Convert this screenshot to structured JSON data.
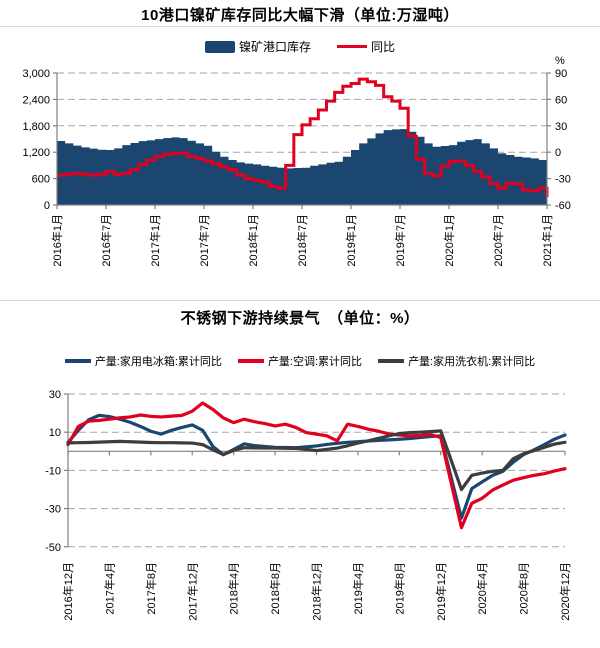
{
  "page_background": "#ffffff",
  "chart_data": [
    {
      "type": "area",
      "title": "10港口镍矿库存同比大幅下滑（单位:万湿吨）",
      "legend_position": "top",
      "grid": true,
      "x_frequency": "monthly",
      "x_range": "2016年1月 — 2021年1月",
      "x_tick_labels": [
        "2016年1月",
        "2016年7月",
        "2017年1月",
        "2017年7月",
        "2018年1月",
        "2018年7月",
        "2019年1月",
        "2019年7月",
        "2020年1月",
        "2020年7月",
        "2021年1月"
      ],
      "y_left": {
        "label": "万湿吨",
        "min": 0,
        "max": 3000,
        "tick_values": [
          3000,
          2400,
          1800,
          1200,
          600,
          0
        ],
        "tick_labels": [
          "3,000",
          "2,400",
          "1,800",
          "1,200",
          "600",
          "0"
        ]
      },
      "y_right": {
        "unit": "%",
        "min": -60,
        "max": 90,
        "tick_values": [
          90,
          60,
          30,
          0,
          -30,
          -60
        ],
        "tick_labels": [
          "90",
          "60",
          "30",
          "0",
          "-30",
          "-60"
        ]
      },
      "style": {
        "grid_color": "#a6a6a6",
        "axis_color": "#808080"
      },
      "series": [
        {
          "name": "镍矿港口库存",
          "axis": "left",
          "style": "step-area",
          "color": "#1b4670",
          "values": [
            1455,
            1400,
            1350,
            1310,
            1280,
            1255,
            1250,
            1286,
            1360,
            1410,
            1453,
            1470,
            1498,
            1520,
            1537,
            1520,
            1460,
            1400,
            1346,
            1210,
            1097,
            1022,
            969,
            940,
            923,
            892,
            870,
            847,
            833,
            840,
            847,
            892,
            923,
            960,
            984,
            1097,
            1250,
            1400,
            1514,
            1627,
            1702,
            1720,
            1725,
            1664,
            1550,
            1400,
            1323,
            1340,
            1360,
            1437,
            1475,
            1498,
            1400,
            1286,
            1173,
            1135,
            1097,
            1080,
            1060,
            1022,
            975
          ]
        },
        {
          "name": "同比",
          "axis": "right",
          "style": "step-line",
          "color": "#e1001e",
          "values": [
            -26,
            -25,
            -24,
            -25,
            -26,
            -25,
            -22,
            -25,
            -24,
            -20,
            -14,
            -9,
            -5,
            -2.5,
            -1.5,
            -1,
            -5,
            -7,
            -10,
            -13,
            -17,
            -20,
            -26,
            -30,
            -32,
            -34,
            -39,
            -41,
            -15,
            20,
            31,
            38,
            48,
            58,
            68,
            75,
            78,
            83,
            80,
            76,
            63,
            58,
            50,
            18,
            -8,
            -24,
            -27,
            -16,
            -10.5,
            -10,
            -15,
            -22,
            -28,
            -36,
            -41,
            -35,
            -36,
            -43,
            -44,
            -41,
            -51
          ]
        }
      ]
    },
    {
      "type": "line",
      "title": "不锈钢下游持续景气　（单位：%）",
      "legend_position": "top",
      "grid": true,
      "x_frequency": "monthly",
      "x_range": "2016年12月 — 2020年12月",
      "x_tick_labels": [
        "2016年12月",
        "2017年4月",
        "2017年8月",
        "2017年12月",
        "2018年4月",
        "2018年8月",
        "2018年12月",
        "2019年4月",
        "2019年8月",
        "2019年12月",
        "2020年4月",
        "2020年8月",
        "2020年12月"
      ],
      "y": {
        "unit": "%",
        "min": -50,
        "max": 30,
        "tick_values": [
          30,
          10,
          -10,
          -30,
          -50
        ],
        "tick_labels": [
          "30",
          "10",
          "-10",
          "-30",
          "-50"
        ]
      },
      "style": {
        "grid_color": "#a6a6a6",
        "axis_color": "#808080"
      },
      "series": [
        {
          "name": "产量:家用电冰箱:累计同比",
          "color": "#1b4670",
          "values": [
            4.6,
            11,
            16.5,
            18.8,
            18.2,
            16.8,
            15.2,
            13,
            10.5,
            9,
            11,
            12.5,
            13.8,
            11,
            2.5,
            -1.8,
            1,
            3.9,
            3,
            2.5,
            2.1,
            2,
            1.9,
            2.3,
            2.8,
            3.6,
            4.2,
            4.7,
            5,
            5.4,
            5.7,
            6,
            6.3,
            6.7,
            7.2,
            7.7,
            8.1,
            -13.5,
            -35,
            -19.5,
            -16,
            -12.6,
            -10.5,
            -5.7,
            -1.7,
            0.7,
            3.5,
            6.4,
            8.5
          ]
        },
        {
          "name": "产量:空调:累计同比",
          "color": "#e1001e",
          "values": [
            3.5,
            13,
            15.8,
            16.2,
            16.8,
            17.5,
            18,
            19,
            18.3,
            18,
            18.4,
            18.8,
            21,
            25.3,
            21.9,
            17.5,
            15,
            16.8,
            15.5,
            14.5,
            13.3,
            14.2,
            12.5,
            9.8,
            9,
            8.1,
            5.5,
            14.2,
            13,
            11.6,
            10.5,
            9.1,
            8.5,
            8.1,
            8.3,
            8.8,
            7.2,
            -16.4,
            -40,
            -27.2,
            -24.6,
            -20.3,
            -17.7,
            -15.1,
            -13.8,
            -12.6,
            -11.7,
            -10.3,
            -9.1
          ]
        },
        {
          "name": "产量:家用洗衣机:累计同比",
          "color": "#3d3d3d",
          "values": [
            4.4,
            4.5,
            4.6,
            4.8,
            5,
            5.2,
            5,
            4.8,
            4.6,
            4.5,
            4.5,
            4.4,
            4.3,
            3.5,
            0.8,
            -1.7,
            0.5,
            1.9,
            1.8,
            1.7,
            1.7,
            1.6,
            1.5,
            1,
            0.4,
            1,
            1.7,
            2.9,
            4.3,
            5.5,
            6.8,
            8.1,
            9.3,
            9.8,
            10,
            10.3,
            10.7,
            -4.6,
            -20,
            -12.6,
            -11.4,
            -10.5,
            -10,
            -3.9,
            -1.3,
            0.4,
            2.1,
            3.8,
            4.7
          ]
        }
      ]
    }
  ]
}
